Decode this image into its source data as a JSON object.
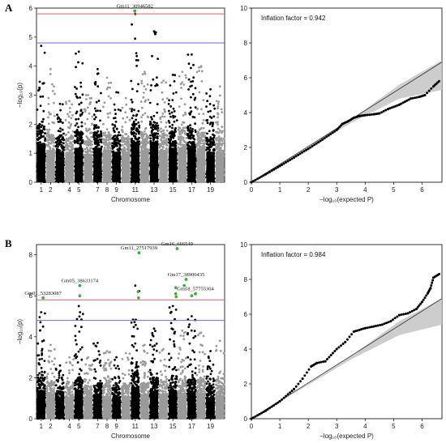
{
  "figure": {
    "panels": [
      "A",
      "B"
    ]
  },
  "chart_data": [
    {
      "panel": "A",
      "type": "scatter",
      "kind": "manhattan",
      "ylabel": "−log₁₀(p)",
      "xlabel": "Chromosome",
      "ylim": [
        0,
        6
      ],
      "yticks": [
        0,
        1,
        2,
        3,
        4,
        5,
        6
      ],
      "xtick_labels": [
        "1",
        "2",
        "4",
        "5",
        "7",
        "8",
        "9",
        "11",
        "13",
        "15",
        "17",
        "19"
      ],
      "chromosomes": [
        "1",
        "2",
        "3",
        "4",
        "5",
        "6",
        "7",
        "8",
        "9",
        "10",
        "11",
        "12",
        "13",
        "14",
        "15",
        "16",
        "17",
        "18",
        "19",
        "20"
      ],
      "chrom_max": [
        4.7,
        3.9,
        2.7,
        2.8,
        4.5,
        3.0,
        3.9,
        3.6,
        3.1,
        2.9,
        5.8,
        3.8,
        5.2,
        3.5,
        3.7,
        3.8,
        4.4,
        4.0,
        3.2,
        3.3
      ],
      "chrom_base": [
        1.9,
        1.6,
        1.5,
        1.5,
        1.7,
        1.4,
        1.7,
        1.6,
        1.5,
        1.5,
        2.0,
        1.6,
        2.0,
        1.6,
        1.7,
        1.7,
        1.8,
        1.7,
        1.5,
        1.5
      ],
      "colors": {
        "odd": "#000000",
        "even": "#9a9a9a",
        "significant": "#33b233"
      },
      "thresholds": [
        {
          "value": 5.8,
          "color": "#e06262"
        },
        {
          "value": 4.8,
          "color": "#6b6bd9"
        }
      ],
      "significant_snps": [
        {
          "label": "Gm11_30946582",
          "chromosome": 11,
          "offset": 0.45,
          "y": 5.9
        }
      ]
    },
    {
      "panel": "A",
      "type": "scatter",
      "kind": "qq",
      "annotation": "Inflation factor = 0.942",
      "xlabel": "−log₁₀(expected P)",
      "xlim": [
        0,
        6.7
      ],
      "ylim": [
        0,
        10
      ],
      "xticks": [
        0,
        1,
        2,
        3,
        4,
        5,
        6
      ],
      "yticks": [
        0,
        2,
        4,
        6,
        8,
        10
      ],
      "points": [
        [
          0.0,
          0.0
        ],
        [
          0.5,
          0.45
        ],
        [
          1.0,
          0.93
        ],
        [
          1.5,
          1.42
        ],
        [
          2.0,
          1.92
        ],
        [
          2.5,
          2.45
        ],
        [
          3.0,
          3.0
        ],
        [
          3.2,
          3.35
        ],
        [
          3.4,
          3.5
        ],
        [
          3.6,
          3.7
        ],
        [
          3.8,
          3.8
        ],
        [
          4.0,
          3.85
        ],
        [
          4.3,
          3.9
        ],
        [
          4.5,
          3.95
        ],
        [
          4.8,
          4.2
        ],
        [
          5.2,
          4.45
        ],
        [
          5.6,
          4.8
        ],
        [
          5.9,
          4.9
        ],
        [
          6.1,
          5.0
        ],
        [
          6.4,
          5.5
        ],
        [
          6.6,
          5.8
        ]
      ],
      "band": {
        "color": "#c8c8c8",
        "upper_end": 7.0,
        "lower_end": 5.3
      }
    },
    {
      "panel": "B",
      "type": "scatter",
      "kind": "manhattan",
      "ylabel": "−log₁₀(p)",
      "xlabel": "Chromosome",
      "ylim": [
        0,
        8.5
      ],
      "yticks": [
        0,
        2,
        4,
        6,
        8
      ],
      "xtick_labels": [
        "1",
        "2",
        "4",
        "5",
        "7",
        "8",
        "9",
        "11",
        "13",
        "15",
        "17",
        "19"
      ],
      "chromosomes": [
        "1",
        "2",
        "3",
        "4",
        "5",
        "6",
        "7",
        "8",
        "9",
        "10",
        "11",
        "12",
        "13",
        "14",
        "15",
        "16",
        "17",
        "18",
        "19",
        "20"
      ],
      "chrom_max": [
        5.2,
        3.6,
        2.6,
        3.0,
        5.5,
        3.0,
        3.7,
        3.3,
        3.0,
        3.2,
        6.5,
        3.6,
        4.4,
        3.4,
        5.5,
        4.3,
        5.0,
        4.2,
        3.3,
        3.8
      ],
      "chrom_base": [
        2.0,
        1.7,
        1.5,
        1.5,
        1.9,
        1.5,
        1.7,
        1.6,
        1.5,
        1.6,
        2.2,
        1.7,
        1.9,
        1.6,
        2.0,
        1.8,
        1.9,
        1.8,
        1.5,
        1.6
      ],
      "colors": {
        "odd": "#000000",
        "even": "#9a9a9a",
        "significant": "#33b233"
      },
      "thresholds": [
        {
          "value": 5.8,
          "color": "#e06262"
        },
        {
          "value": 4.8,
          "color": "#6b6bd9"
        }
      ],
      "significant_snps": [
        {
          "label": "Gm01_53283087",
          "chromosome": 1,
          "offset": 0.7,
          "y": 5.9
        },
        {
          "label": "Gm05_38633174",
          "chromosome": 5,
          "offset": 0.6,
          "y": 6.5
        },
        {
          "label": "Gm11_27517939",
          "chromosome": 11,
          "offset": 0.9,
          "y": 8.1
        },
        {
          "label": "Gm16_666540",
          "chromosome": 15,
          "offset": 0.95,
          "y": 8.3
        },
        {
          "label": "Gm17_38900435",
          "chromosome": 16,
          "offset": 0.9,
          "y": 6.8
        },
        {
          "label": "Gm18_57755304",
          "chromosome": 17,
          "offset": 0.9,
          "y": 6.1
        }
      ],
      "extra_significant": [
        {
          "chromosome": 5,
          "offset": 0.6,
          "y": 6.0
        },
        {
          "chromosome": 11,
          "offset": 0.8,
          "y": 6.2
        },
        {
          "chromosome": 11,
          "offset": 0.85,
          "y": 5.9
        },
        {
          "chromosome": 15,
          "offset": 0.8,
          "y": 6.4
        },
        {
          "chromosome": 15,
          "offset": 0.8,
          "y": 6.1
        },
        {
          "chromosome": 15,
          "offset": 0.85,
          "y": 5.95
        },
        {
          "chromosome": 16,
          "offset": 0.7,
          "y": 6.5
        },
        {
          "chromosome": 17,
          "offset": 0.5,
          "y": 6.0
        }
      ]
    },
    {
      "panel": "B",
      "type": "scatter",
      "kind": "qq",
      "annotation": "Inflation factor = 0.984",
      "xlabel": "−log₁₀(expected P)",
      "xlim": [
        0,
        6.7
      ],
      "ylim": [
        0,
        10
      ],
      "xticks": [
        0,
        1,
        2,
        3,
        4,
        5,
        6
      ],
      "yticks": [
        0,
        2,
        4,
        6,
        8,
        10
      ],
      "points": [
        [
          0.0,
          0.0
        ],
        [
          0.5,
          0.45
        ],
        [
          1.0,
          1.0
        ],
        [
          1.5,
          1.7
        ],
        [
          1.8,
          2.3
        ],
        [
          2.1,
          3.0
        ],
        [
          2.3,
          3.2
        ],
        [
          2.6,
          3.3
        ],
        [
          3.0,
          4.0
        ],
        [
          3.3,
          4.4
        ],
        [
          3.6,
          5.0
        ],
        [
          4.0,
          5.2
        ],
        [
          4.3,
          5.3
        ],
        [
          4.6,
          5.4
        ],
        [
          4.9,
          5.6
        ],
        [
          5.2,
          5.95
        ],
        [
          5.5,
          6.05
        ],
        [
          5.8,
          6.3
        ],
        [
          6.0,
          6.7
        ],
        [
          6.2,
          7.2
        ],
        [
          6.3,
          7.5
        ],
        [
          6.4,
          8.1
        ],
        [
          6.6,
          8.3
        ]
      ],
      "band": {
        "color": "#c8c8c8",
        "upper_end": 6.9,
        "lower_end": 5.4
      }
    }
  ]
}
